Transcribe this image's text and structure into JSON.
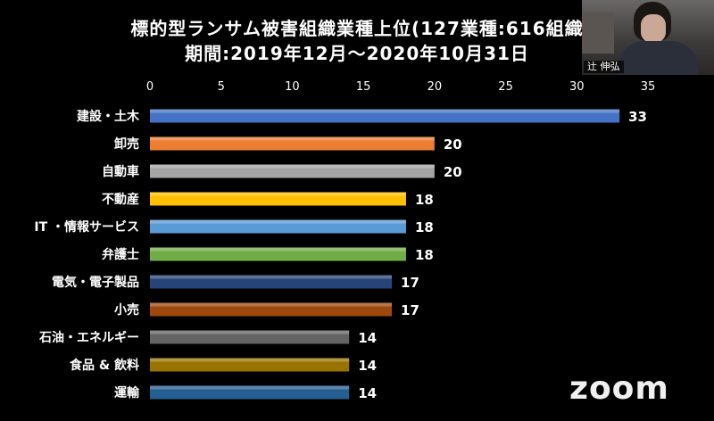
{
  "chart_data": {
    "type": "bar",
    "orientation": "horizontal",
    "title": "標的型ランサム被害組織業種上位(127業種:616組織",
    "subtitle": "期間:2019年12月〜2020年10月31日",
    "xlim": [
      0,
      35
    ],
    "xticks": [
      0,
      5,
      10,
      15,
      20,
      25,
      30,
      35
    ],
    "grid": false,
    "categories": [
      "建設・土木",
      "卸売",
      "自動車",
      "不動産",
      "IT ・情報サービス",
      "弁護士",
      "電気・電子製品",
      "小売",
      "石油・エネルギー",
      "食品 & 飲料",
      "運輸"
    ],
    "values": [
      33,
      20,
      20,
      18,
      18,
      18,
      17,
      17,
      14,
      14,
      14
    ],
    "colors": [
      "#4472c4",
      "#ed7d31",
      "#a5a5a5",
      "#ffc000",
      "#5b9bd5",
      "#70ad47",
      "#264478",
      "#9e480e",
      "#636363",
      "#997300",
      "#255e91"
    ]
  },
  "webcam": {
    "name": "辻 伸弘"
  },
  "logo": {
    "text": "zoom"
  }
}
